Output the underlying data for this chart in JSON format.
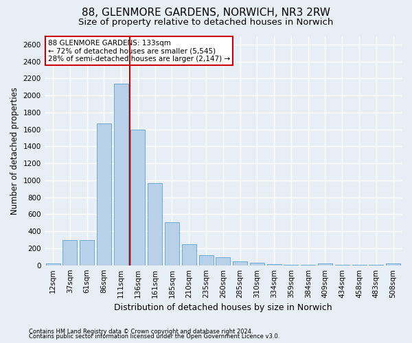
{
  "title": "88, GLENMORE GARDENS, NORWICH, NR3 2RW",
  "subtitle": "Size of property relative to detached houses in Norwich",
  "xlabel": "Distribution of detached houses by size in Norwich",
  "ylabel": "Number of detached properties",
  "footer_line1": "Contains HM Land Registry data © Crown copyright and database right 2024.",
  "footer_line2": "Contains public sector information licensed under the Open Government Licence v3.0.",
  "categories": [
    "12sqm",
    "37sqm",
    "61sqm",
    "86sqm",
    "111sqm",
    "136sqm",
    "161sqm",
    "185sqm",
    "210sqm",
    "235sqm",
    "260sqm",
    "285sqm",
    "310sqm",
    "334sqm",
    "359sqm",
    "384sqm",
    "409sqm",
    "434sqm",
    "458sqm",
    "483sqm",
    "508sqm"
  ],
  "values": [
    20,
    300,
    300,
    1670,
    2140,
    1600,
    970,
    505,
    245,
    115,
    95,
    45,
    30,
    10,
    5,
    5,
    20,
    5,
    5,
    5,
    20
  ],
  "bar_color": "#b8d0e8",
  "bar_edge_color": "#6aaad4",
  "vline_x_index": 4.5,
  "vline_color": "#cc0000",
  "annotation_text": "88 GLENMORE GARDENS: 133sqm\n← 72% of detached houses are smaller (5,545)\n28% of semi-detached houses are larger (2,147) →",
  "annotation_box_facecolor": "#ffffff",
  "annotation_box_edgecolor": "#cc0000",
  "ylim": [
    0,
    2700
  ],
  "yticks": [
    0,
    200,
    400,
    600,
    800,
    1000,
    1200,
    1400,
    1600,
    1800,
    2000,
    2200,
    2400,
    2600
  ],
  "background_color": "#e8eef5",
  "plot_bg_color": "#e8eef5",
  "title_fontsize": 11,
  "subtitle_fontsize": 9.5,
  "xlabel_fontsize": 9,
  "ylabel_fontsize": 8.5,
  "tick_fontsize": 7.5,
  "annotation_fontsize": 7.5,
  "footer_fontsize": 6,
  "grid_color": "#ffffff",
  "grid_linewidth": 1.0
}
